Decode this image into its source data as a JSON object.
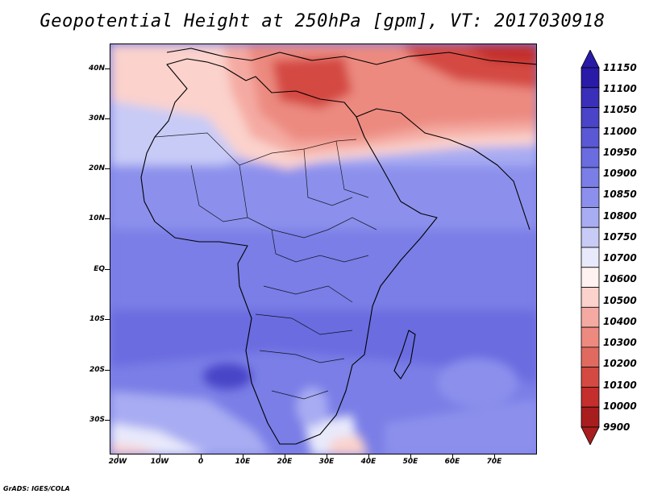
{
  "title": "Geopotential Height at 250hPa [gpm], VT: 2017030918",
  "credit": "GrADS: IGES/COLA",
  "lat_axis": [
    "40N",
    "30N",
    "20N",
    "10N",
    "EQ",
    "10S",
    "20S",
    "30S"
  ],
  "lon_axis": [
    "20W",
    "10W",
    "0",
    "10E",
    "20E",
    "30E",
    "40E",
    "50E",
    "60E",
    "70E"
  ],
  "colorbar": {
    "labels": [
      "11150",
      "11100",
      "11050",
      "11000",
      "10950",
      "10900",
      "10850",
      "10800",
      "10750",
      "10700",
      "10600",
      "10500",
      "10400",
      "10300",
      "10200",
      "10100",
      "10000",
      "9900"
    ],
    "colors": [
      "#2a1aa8",
      "#3a2fb8",
      "#4a44c8",
      "#5a58d4",
      "#6a6ce0",
      "#7a7ee6",
      "#8c90ec",
      "#a8acf2",
      "#c8cbf6",
      "#e8e9fb",
      "#fff2f0",
      "#fbd2cc",
      "#f4aaa2",
      "#ec8a80",
      "#e06a60",
      "#d44a42",
      "#c42e2c",
      "#a81e1e"
    ],
    "top_arrow": "#2a1aa8",
    "bottom_arrow": "#a81e1e"
  }
}
